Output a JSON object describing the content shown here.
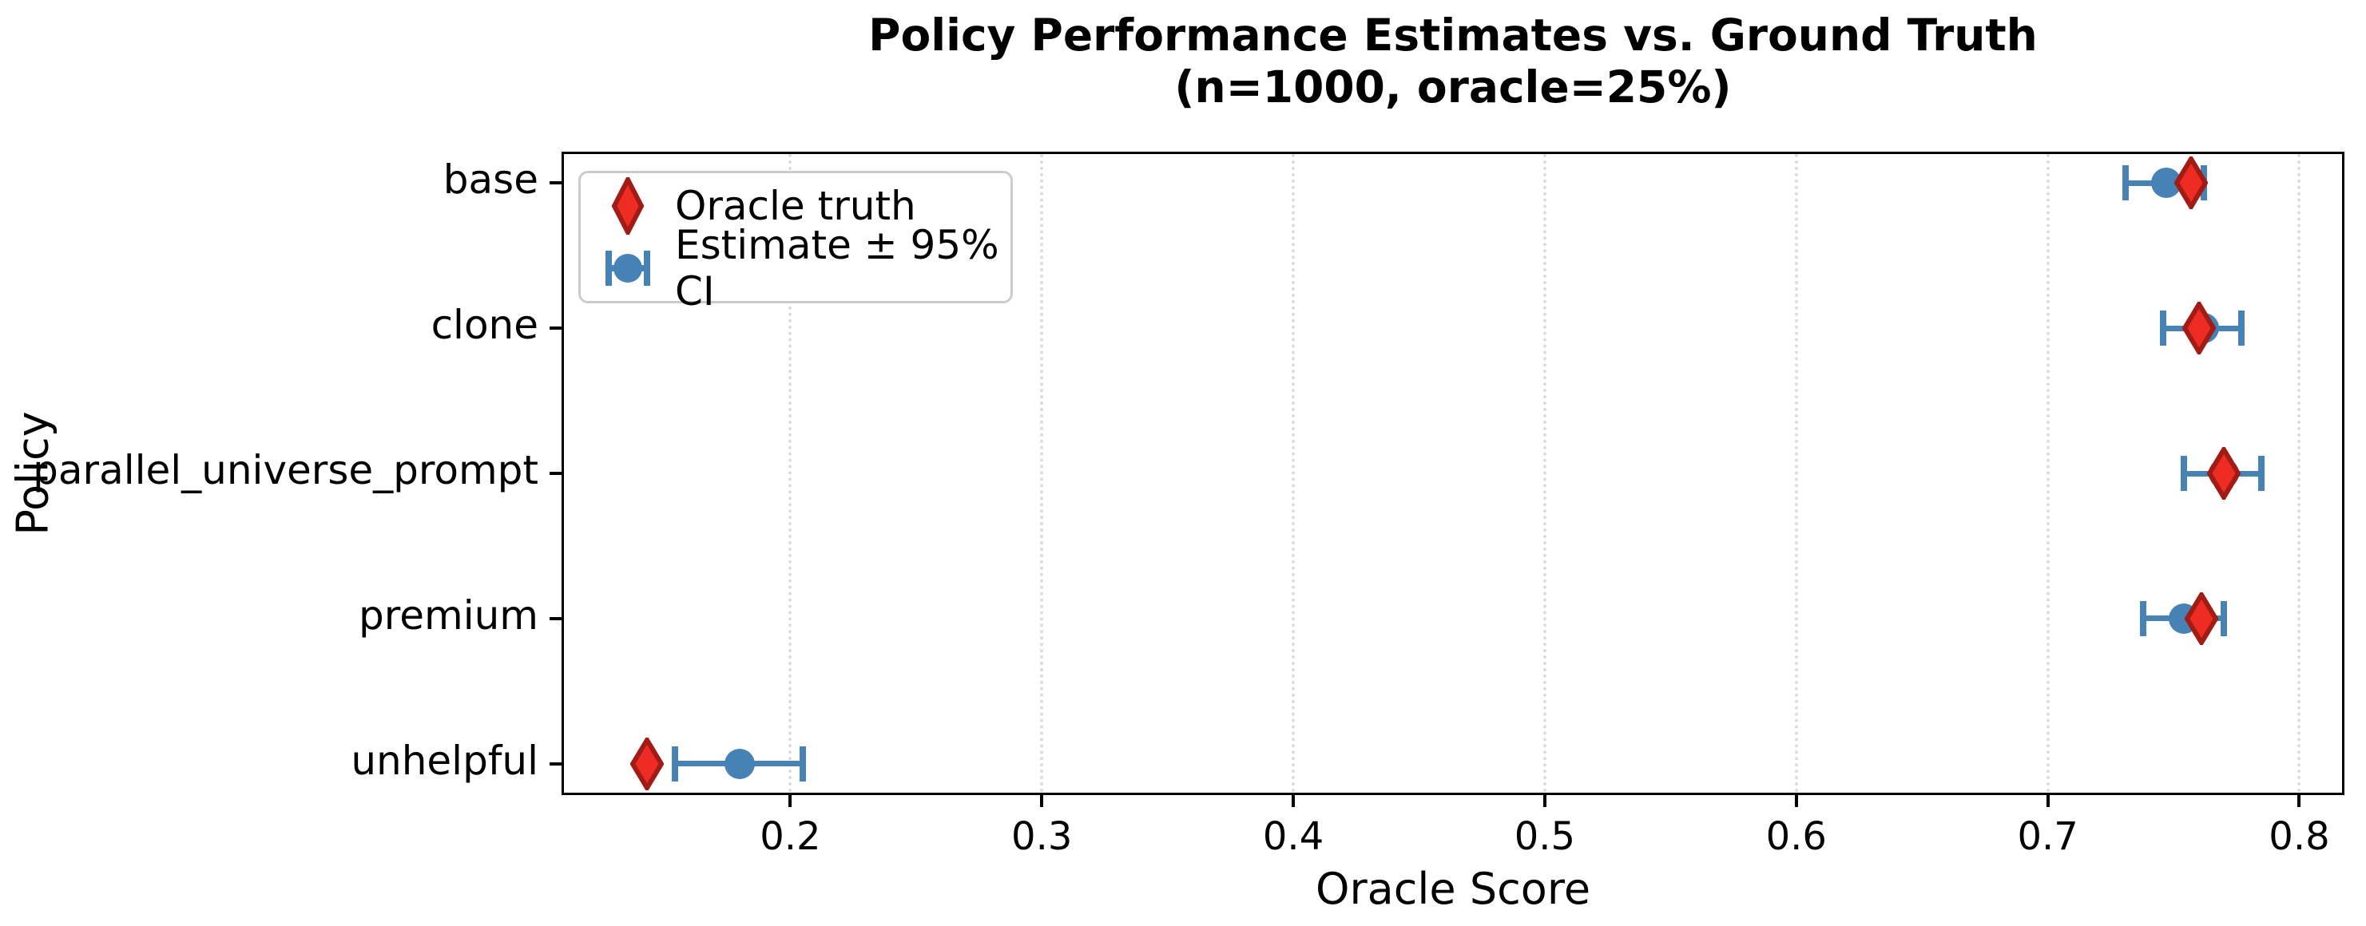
{
  "title": {
    "line1": "Policy Performance Estimates vs. Ground Truth",
    "line2": "(n=1000, oracle=25%)"
  },
  "legend": {
    "entries": [
      {
        "label": "Oracle truth",
        "marker": "red-diamond"
      },
      {
        "label": "Estimate ± 95% CI",
        "marker": "blue-circle-errorbar"
      }
    ],
    "position": "upper-left"
  },
  "colors": {
    "estimate_blue": "#4682B4",
    "oracle_red_fill": "#EE2C24",
    "oracle_red_edge": "#A01C15",
    "grid": "#DCDCDC",
    "axis": "#000000"
  },
  "chart_data": {
    "type": "scatter",
    "orientation": "horizontal",
    "title": "Policy Performance Estimates vs. Ground Truth",
    "subtitle": "(n=1000, oracle=25%)",
    "xlabel": "Oracle Score",
    "ylabel": "Policy",
    "xlim": [
      0.11,
      0.817
    ],
    "xticks": [
      0.2,
      0.3,
      0.4,
      0.5,
      0.6,
      0.7,
      0.8
    ],
    "grid": "vertical-dotted",
    "legend_position": "upper-left",
    "categories": [
      "base",
      "clone",
      "parallel_universe_prompt",
      "premium",
      "unhelpful"
    ],
    "series": [
      {
        "name": "Oracle truth",
        "marker": "diamond",
        "values": [
          0.757,
          0.76,
          0.77,
          0.761,
          0.143
        ]
      },
      {
        "name": "Estimate ± 95% CI",
        "marker": "circle-with-error-bars",
        "values": [
          0.747,
          0.762,
          0.77,
          0.754,
          0.18
        ],
        "ci_low": [
          0.731,
          0.746,
          0.754,
          0.738,
          0.154
        ],
        "ci_high": [
          0.762,
          0.777,
          0.785,
          0.77,
          0.205
        ]
      }
    ]
  }
}
